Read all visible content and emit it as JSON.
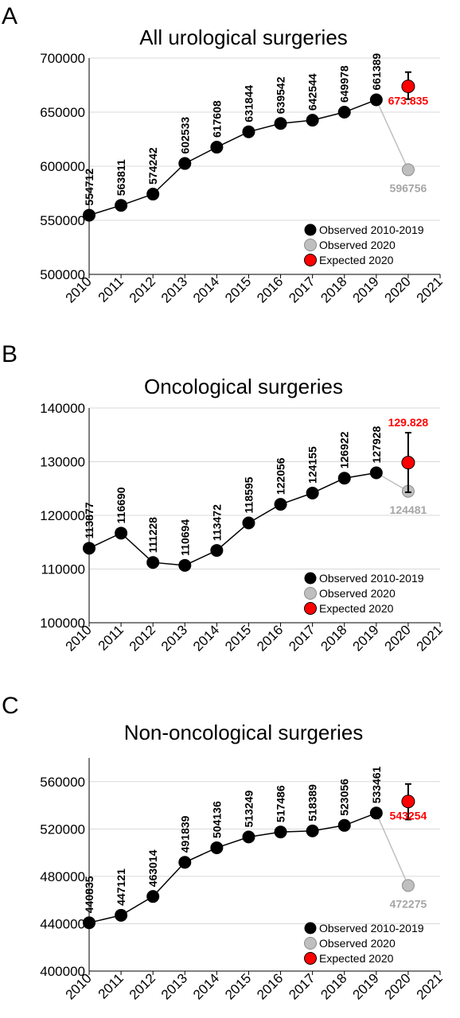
{
  "chart_data": [
    {
      "panel_letter": "A",
      "type": "line",
      "title": "All urological surgeries",
      "x": [
        2010,
        2011,
        2012,
        2013,
        2014,
        2015,
        2016,
        2017,
        2018,
        2019
      ],
      "x_ticks": [
        "2010",
        "2011",
        "2012",
        "2013",
        "2014",
        "2015",
        "2016",
        "2017",
        "2018",
        "2019",
        "2020",
        "2021"
      ],
      "y_ticks": [
        "500000",
        "550000",
        "600000",
        "650000",
        "700000"
      ],
      "ylim": [
        500000,
        700000
      ],
      "xlim": [
        2010,
        2021
      ],
      "grid": "horizontal",
      "series": [
        {
          "name": "Observed 2010-2019",
          "values": [
            554712,
            563811,
            574242,
            602533,
            617608,
            631844,
            639542,
            642544,
            649978,
            661389
          ],
          "labels": [
            "554712",
            "563811",
            "574242",
            "602533",
            "617608",
            "631844",
            "639542",
            "642544",
            "649978",
            "661389"
          ]
        },
        {
          "name": "Observed 2020",
          "x": 2020,
          "value": 596756,
          "label": "596756"
        },
        {
          "name": "Expected 2020",
          "x": 2020,
          "value": 673835,
          "error": [
            662000,
            687000
          ],
          "label": "673.835"
        }
      ],
      "legend": [
        "Observed 2010-2019",
        "Observed 2020",
        "Expected 2020"
      ],
      "legend_position": "bottom-right"
    },
    {
      "panel_letter": "B",
      "type": "line",
      "title": "Oncological surgeries",
      "x": [
        2010,
        2011,
        2012,
        2013,
        2014,
        2015,
        2016,
        2017,
        2018,
        2019
      ],
      "x_ticks": [
        "2010",
        "2011",
        "2012",
        "2013",
        "2014",
        "2015",
        "2016",
        "2017",
        "2018",
        "2019",
        "2020",
        "2021"
      ],
      "y_ticks": [
        "100000",
        "110000",
        "120000",
        "130000",
        "140000"
      ],
      "ylim": [
        100000,
        140000
      ],
      "xlim": [
        2010,
        2021
      ],
      "grid": "horizontal",
      "series": [
        {
          "name": "Observed 2010-2019",
          "values": [
            113877,
            116690,
            111228,
            110694,
            113472,
            118595,
            122056,
            124155,
            126922,
            127928
          ],
          "labels": [
            "113877",
            "116690",
            "111228",
            "110694",
            "113472",
            "118595",
            "122056",
            "124155",
            "126922",
            "127928"
          ]
        },
        {
          "name": "Observed 2020",
          "x": 2020,
          "value": 124481,
          "label": "124481"
        },
        {
          "name": "Expected 2020",
          "x": 2020,
          "value": 129828,
          "error": [
            124300,
            135400
          ],
          "label": "129.828"
        }
      ],
      "legend": [
        "Observed 2010-2019",
        "Observed 2020",
        "Expected 2020"
      ],
      "legend_position": "bottom-right"
    },
    {
      "panel_letter": "C",
      "type": "line",
      "title": "Non-oncological surgeries",
      "x": [
        2010,
        2011,
        2012,
        2013,
        2014,
        2015,
        2016,
        2017,
        2018,
        2019
      ],
      "x_ticks": [
        "2010",
        "2011",
        "2012",
        "2013",
        "2014",
        "2015",
        "2016",
        "2017",
        "2018",
        "2019",
        "2020",
        "2021"
      ],
      "y_ticks": [
        "400000",
        "440000",
        "480000",
        "520000",
        "560000"
      ],
      "ylim": [
        400000,
        580000
      ],
      "xlim": [
        2010,
        2021
      ],
      "grid": "horizontal",
      "series": [
        {
          "name": "Observed 2010-2019",
          "values": [
            440835,
            447121,
            463014,
            491839,
            504136,
            513249,
            517486,
            518389,
            523056,
            533461
          ],
          "labels": [
            "440835",
            "447121",
            "463014",
            "491839",
            "504136",
            "513249",
            "517486",
            "518389",
            "523056",
            "533461"
          ]
        },
        {
          "name": "Observed 2020",
          "x": 2020,
          "value": 472275,
          "label": "472275"
        },
        {
          "name": "Expected 2020",
          "x": 2020,
          "value": 543254,
          "error": [
            528000,
            558000
          ],
          "label": "543254"
        }
      ],
      "legend": [
        "Observed 2010-2019",
        "Observed 2020",
        "Expected 2020"
      ],
      "legend_position": "bottom-right"
    }
  ],
  "colors": {
    "observed": "#000000",
    "observed_2020": "#bfbfbf",
    "observed_2020_text": "#a6a6a6",
    "expected": "#ff0000",
    "grid": "#d9d9d9",
    "axis": "#000000"
  }
}
